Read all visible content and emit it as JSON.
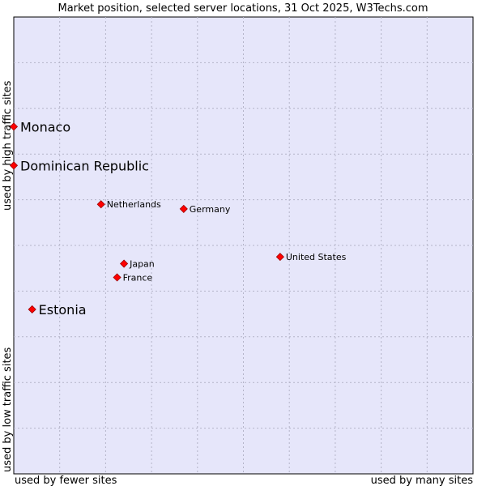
{
  "chart_data": {
    "type": "scatter",
    "title": "Market position, selected server locations, 31 Oct 2025, W3Techs.com",
    "xlabel_left": "used by fewer sites",
    "xlabel_right": "used by many sites",
    "ylabel_bottom": "used by low traffic sites",
    "ylabel_top": "used by high traffic sites",
    "xlim": [
      0,
      10
    ],
    "ylim": [
      0,
      10
    ],
    "grid": true,
    "colors": {
      "plot_bg": "#e6e6fa",
      "grid": "#b4b4c8",
      "marker": "#ff0000",
      "marker_edge": "#9b0000",
      "text": "#000000"
    },
    "points": [
      {
        "label": "Monaco",
        "x": 0.0,
        "y": 7.6,
        "emphasis": true
      },
      {
        "label": "Dominican Republic",
        "x": 0.0,
        "y": 6.75,
        "emphasis": true
      },
      {
        "label": "Netherlands",
        "x": 1.9,
        "y": 5.9,
        "emphasis": false
      },
      {
        "label": "Germany",
        "x": 3.7,
        "y": 5.8,
        "emphasis": false
      },
      {
        "label": "United States",
        "x": 5.8,
        "y": 4.75,
        "emphasis": false
      },
      {
        "label": "Japan",
        "x": 2.4,
        "y": 4.6,
        "emphasis": false
      },
      {
        "label": "France",
        "x": 2.25,
        "y": 4.3,
        "emphasis": false
      },
      {
        "label": "Estonia",
        "x": 0.4,
        "y": 3.6,
        "emphasis": true
      }
    ]
  }
}
